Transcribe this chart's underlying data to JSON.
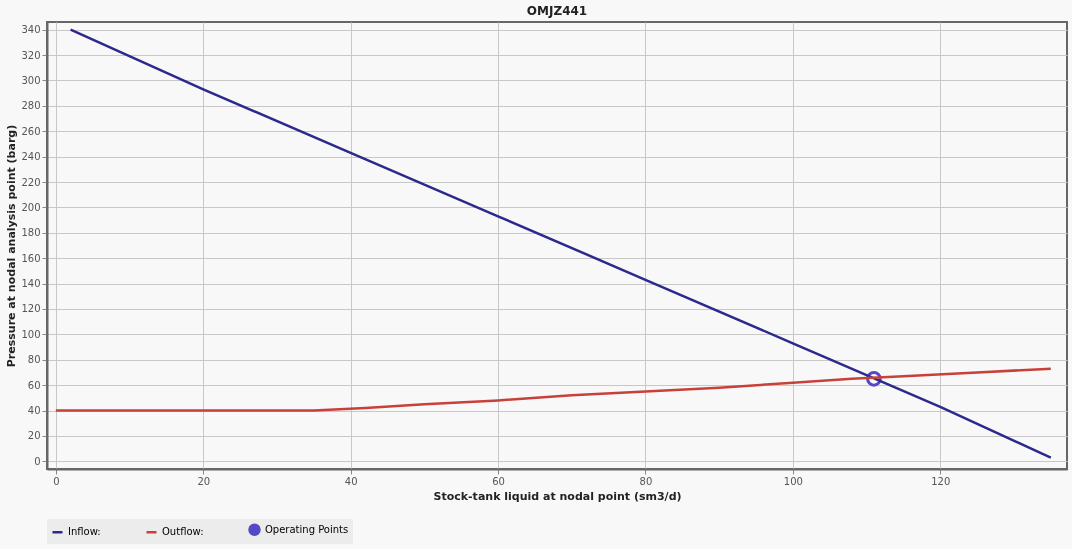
{
  "chart_data": {
    "type": "line",
    "title": "OMJZ441",
    "xlabel": "Stock-tank liquid at nodal point (sm3/d)",
    "ylabel": "Pressure at nodal analysis point (barg)",
    "xlim": [
      -1.2,
      137.2
    ],
    "ylim": [
      -6,
      346
    ],
    "xticks": [
      0,
      20,
      40,
      60,
      80,
      100,
      120
    ],
    "yticks": [
      0,
      20,
      40,
      60,
      80,
      100,
      120,
      140,
      160,
      180,
      200,
      220,
      240,
      260,
      280,
      300,
      320,
      340
    ],
    "grid": true,
    "legend": "bottom",
    "line_style": "solid",
    "series": [
      {
        "name": "Inflow:",
        "color": "#2b2a8c",
        "x": [
          2,
          20,
          40,
          60,
          80,
          100,
          120,
          135
        ],
        "values": [
          340,
          293,
          243,
          193,
          143,
          93,
          43,
          3
        ]
      },
      {
        "name": "Outflow:",
        "color": "#c8403a",
        "x": [
          0,
          10,
          20,
          35,
          42,
          50,
          60,
          70,
          80,
          90,
          100,
          108,
          115,
          125,
          135
        ],
        "values": [
          40,
          40,
          40,
          40,
          42,
          45,
          48,
          52,
          55,
          58,
          62,
          65,
          67,
          70,
          73
        ]
      },
      {
        "name": "Operating Points",
        "type": "scatter",
        "marker": "circle",
        "color": "#5548c8",
        "x": [
          111
        ],
        "values": [
          65
        ]
      }
    ]
  }
}
